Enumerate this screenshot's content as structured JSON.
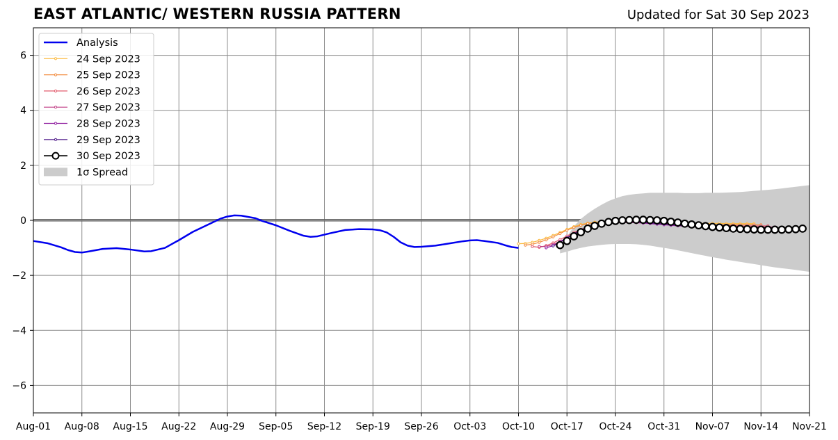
{
  "header": {
    "title": "EAST ATLANTIC/ WESTERN RUSSIA PATTERN",
    "updated": "Updated for Sat 30 Sep 2023"
  },
  "chart_data": {
    "type": "line",
    "title": "EAST ATLANTIC/ WESTERN RUSSIA PATTERN",
    "subtitle": "Updated for Sat 30 Sep 2023",
    "xlabel": "",
    "ylabel": "",
    "x_axis": "date",
    "xlim": [
      "2023-08-01",
      "2023-11-21"
    ],
    "ylim": [
      -7,
      7
    ],
    "grid": true,
    "legend_position": "top-left",
    "x_ticks": [
      "Aug-01",
      "Aug-08",
      "Aug-15",
      "Aug-22",
      "Aug-29",
      "Sep-05",
      "Sep-12",
      "Sep-19",
      "Sep-26",
      "Oct-03",
      "Oct-10",
      "Oct-17",
      "Oct-24",
      "Oct-31",
      "Nov-07",
      "Nov-14",
      "Nov-21"
    ],
    "y_ticks": [
      "6",
      "4",
      "2",
      "0",
      "−2",
      "−4",
      "−6"
    ],
    "y_tick_values": [
      6,
      4,
      2,
      0,
      -2,
      -4,
      -6
    ],
    "analysis": {
      "name": "Analysis",
      "color": "#0000ee",
      "points": [
        [
          "2023-08-01",
          -0.75
        ],
        [
          "2023-08-03",
          -0.83
        ],
        [
          "2023-08-05",
          -0.98
        ],
        [
          "2023-08-06",
          -1.08
        ],
        [
          "2023-08-07",
          -1.15
        ],
        [
          "2023-08-08",
          -1.17
        ],
        [
          "2023-08-09",
          -1.13
        ],
        [
          "2023-08-11",
          -1.04
        ],
        [
          "2023-08-13",
          -1.01
        ],
        [
          "2023-08-15",
          -1.06
        ],
        [
          "2023-08-17",
          -1.13
        ],
        [
          "2023-08-18",
          -1.12
        ],
        [
          "2023-08-20",
          -1.0
        ],
        [
          "2023-08-22",
          -0.72
        ],
        [
          "2023-08-24",
          -0.42
        ],
        [
          "2023-08-26",
          -0.18
        ],
        [
          "2023-08-28",
          0.06
        ],
        [
          "2023-08-29",
          0.14
        ],
        [
          "2023-08-30",
          0.18
        ],
        [
          "2023-08-31",
          0.17
        ],
        [
          "2023-09-02",
          0.08
        ],
        [
          "2023-09-03",
          -0.02
        ],
        [
          "2023-09-05",
          -0.18
        ],
        [
          "2023-09-07",
          -0.38
        ],
        [
          "2023-09-09",
          -0.56
        ],
        [
          "2023-09-10",
          -0.6
        ],
        [
          "2023-09-11",
          -0.58
        ],
        [
          "2023-09-13",
          -0.46
        ],
        [
          "2023-09-15",
          -0.35
        ],
        [
          "2023-09-17",
          -0.32
        ],
        [
          "2023-09-19",
          -0.33
        ],
        [
          "2023-09-20",
          -0.36
        ],
        [
          "2023-09-21",
          -0.44
        ],
        [
          "2023-09-22",
          -0.6
        ],
        [
          "2023-09-23",
          -0.8
        ],
        [
          "2023-09-24",
          -0.92
        ],
        [
          "2023-09-25",
          -0.97
        ],
        [
          "2023-09-26",
          -0.96
        ],
        [
          "2023-09-28",
          -0.92
        ],
        [
          "2023-09-30",
          -0.84
        ],
        [
          "2023-10-02",
          -0.76
        ],
        [
          "2023-10-03",
          -0.73
        ],
        [
          "2023-10-04",
          -0.72
        ],
        [
          "2023-10-05",
          -0.75
        ],
        [
          "2023-10-07",
          -0.82
        ],
        [
          "2023-10-08",
          -0.9
        ],
        [
          "2023-10-09",
          -0.97
        ],
        [
          "2023-10-10",
          -1.0
        ]
      ]
    },
    "forecasts": [
      {
        "name": "24 Sep 2023",
        "color": "#fcba3f",
        "start": "2023-10-10",
        "values": [
          -0.85,
          -0.84,
          -0.8,
          -0.73,
          -0.65,
          -0.55,
          -0.44,
          -0.33,
          -0.23,
          -0.15,
          -0.1,
          -0.07,
          -0.05,
          -0.04,
          -0.03,
          -0.03,
          -0.02,
          -0.02,
          -0.03,
          -0.04,
          -0.05,
          -0.07,
          -0.08,
          -0.09,
          -0.1,
          -0.1,
          -0.11,
          -0.11,
          -0.11,
          -0.11,
          -0.12,
          -0.12,
          -0.12,
          -0.12,
          -0.12
        ]
      },
      {
        "name": "25 Sep 2023",
        "color": "#f28b3d",
        "start": "2023-10-11",
        "values": [
          -0.9,
          -0.87,
          -0.8,
          -0.71,
          -0.6,
          -0.48,
          -0.36,
          -0.26,
          -0.18,
          -0.12,
          -0.09,
          -0.07,
          -0.06,
          -0.06,
          -0.06,
          -0.06,
          -0.07,
          -0.08,
          -0.09,
          -0.1,
          -0.11,
          -0.12,
          -0.13,
          -0.14,
          -0.15,
          -0.15,
          -0.16,
          -0.16,
          -0.16,
          -0.16,
          -0.16,
          -0.16,
          -0.16,
          -0.16,
          -0.16
        ]
      },
      {
        "name": "26 Sep 2023",
        "color": "#e25a6b",
        "start": "2023-10-12",
        "values": [
          -0.95,
          -0.98,
          -0.92,
          -0.82,
          -0.7,
          -0.57,
          -0.44,
          -0.33,
          -0.24,
          -0.17,
          -0.13,
          -0.1,
          -0.08,
          -0.08,
          -0.08,
          -0.08,
          -0.09,
          -0.1,
          -0.12,
          -0.13,
          -0.14,
          -0.15,
          -0.16,
          -0.17,
          -0.18,
          -0.18,
          -0.19,
          -0.19,
          -0.19,
          -0.19,
          -0.2,
          -0.2,
          -0.2,
          -0.2,
          -0.2
        ]
      },
      {
        "name": "27 Sep 2023",
        "color": "#c03d85",
        "start": "2023-10-13",
        "values": [
          -0.95,
          -0.95,
          -0.88,
          -0.77,
          -0.64,
          -0.5,
          -0.37,
          -0.26,
          -0.18,
          -0.13,
          -0.1,
          -0.08,
          -0.08,
          -0.08,
          -0.09,
          -0.1,
          -0.11,
          -0.12,
          -0.14,
          -0.16,
          -0.17,
          -0.18,
          -0.2,
          -0.21,
          -0.22,
          -0.23,
          -0.23,
          -0.24,
          -0.24,
          -0.24,
          -0.24,
          -0.24,
          -0.24,
          -0.24,
          -0.24
        ]
      },
      {
        "name": "28 Sep 2023",
        "color": "#8f1fa0",
        "start": "2023-10-14",
        "values": [
          -1.0,
          -0.92,
          -0.78,
          -0.63,
          -0.48,
          -0.35,
          -0.24,
          -0.16,
          -0.11,
          -0.08,
          -0.07,
          -0.07,
          -0.07,
          -0.08,
          -0.1,
          -0.12,
          -0.14,
          -0.16,
          -0.18,
          -0.2,
          -0.21,
          -0.23,
          -0.24,
          -0.25,
          -0.26,
          -0.27,
          -0.27,
          -0.28,
          -0.28,
          -0.28,
          -0.28,
          -0.28,
          -0.28,
          -0.28,
          -0.28
        ]
      },
      {
        "name": "29 Sep 2023",
        "color": "#4b1587",
        "start": "2023-10-15",
        "values": [
          -0.93,
          -0.8,
          -0.64,
          -0.49,
          -0.36,
          -0.25,
          -0.17,
          -0.11,
          -0.07,
          -0.05,
          -0.04,
          -0.04,
          -0.05,
          -0.07,
          -0.09,
          -0.11,
          -0.13,
          -0.15,
          -0.17,
          -0.19,
          -0.21,
          -0.23,
          -0.25,
          -0.27,
          -0.28,
          -0.29,
          -0.3,
          -0.3,
          -0.3,
          -0.31,
          -0.31,
          -0.31,
          -0.31,
          -0.31,
          -0.31
        ]
      },
      {
        "name": "30 Sep 2023",
        "color": "#000000",
        "start": "2023-10-16",
        "values": [
          -0.9,
          -0.75,
          -0.58,
          -0.43,
          -0.3,
          -0.2,
          -0.12,
          -0.06,
          -0.02,
          0.0,
          0.01,
          0.02,
          0.02,
          0.01,
          0.0,
          -0.02,
          -0.05,
          -0.08,
          -0.12,
          -0.15,
          -0.18,
          -0.21,
          -0.24,
          -0.26,
          -0.28,
          -0.3,
          -0.31,
          -0.32,
          -0.33,
          -0.34,
          -0.34,
          -0.34,
          -0.34,
          -0.33,
          -0.32,
          -0.3
        ]
      }
    ],
    "spread": {
      "name": "1σ Spread",
      "color": "#cccccc",
      "start": "2023-10-16",
      "upper": [
        -1.0,
        -0.6,
        -0.22,
        0.05,
        0.25,
        0.42,
        0.57,
        0.7,
        0.8,
        0.88,
        0.93,
        0.96,
        0.98,
        1.0,
        1.0,
        1.0,
        1.0,
        1.0,
        0.99,
        0.99,
        0.99,
        1.0,
        1.0,
        1.0,
        1.01,
        1.02,
        1.03,
        1.05,
        1.07,
        1.09,
        1.11,
        1.13,
        1.16,
        1.19,
        1.22,
        1.25,
        1.28
      ],
      "lower": [
        -1.2,
        -1.14,
        -1.06,
        -1.0,
        -0.95,
        -0.92,
        -0.89,
        -0.87,
        -0.86,
        -0.86,
        -0.86,
        -0.87,
        -0.89,
        -0.92,
        -0.96,
        -1.0,
        -1.04,
        -1.09,
        -1.14,
        -1.19,
        -1.24,
        -1.29,
        -1.34,
        -1.38,
        -1.43,
        -1.47,
        -1.51,
        -1.55,
        -1.59,
        -1.63,
        -1.67,
        -1.71,
        -1.74,
        -1.77,
        -1.8,
        -1.84,
        -1.87
      ]
    },
    "legend": [
      "Analysis",
      "24 Sep 2023",
      "25 Sep 2023",
      "26 Sep 2023",
      "27 Sep 2023",
      "28 Sep 2023",
      "29 Sep 2023",
      "30 Sep 2023",
      "1σ Spread"
    ]
  }
}
